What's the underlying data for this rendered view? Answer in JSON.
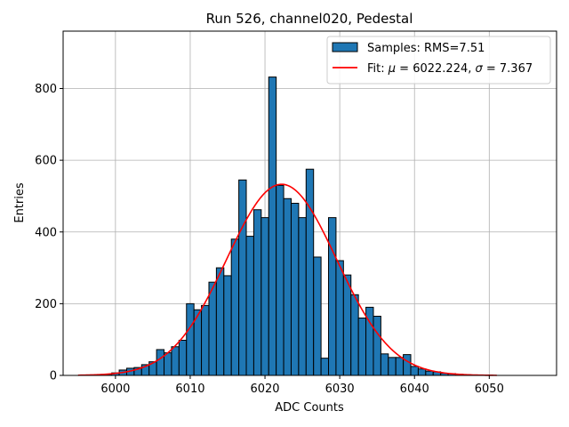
{
  "chart_data": {
    "type": "bar",
    "title": "Run 526, channel020, Pedestal",
    "xlabel": "ADC Counts",
    "ylabel": "Entries",
    "xlim": [
      5993,
      6059
    ],
    "ylim": [
      0,
      960
    ],
    "xticks": [
      6000,
      6010,
      6020,
      6030,
      6040,
      6050
    ],
    "yticks": [
      0,
      200,
      400,
      600,
      800
    ],
    "grid": true,
    "legend_position": "top-right",
    "histogram": {
      "name": "Samples: RMS=7.51",
      "color": "#1f77b4",
      "bins": [
        {
          "x": 5999,
          "count": 3
        },
        {
          "x": 6000,
          "count": 7
        },
        {
          "x": 6001,
          "count": 15
        },
        {
          "x": 6002,
          "count": 20
        },
        {
          "x": 6003,
          "count": 22
        },
        {
          "x": 6004,
          "count": 30
        },
        {
          "x": 6005,
          "count": 38
        },
        {
          "x": 6006,
          "count": 72
        },
        {
          "x": 6007,
          "count": 63
        },
        {
          "x": 6008,
          "count": 80
        },
        {
          "x": 6009,
          "count": 98
        },
        {
          "x": 6010,
          "count": 200
        },
        {
          "x": 6011,
          "count": 183
        },
        {
          "x": 6012,
          "count": 195
        },
        {
          "x": 6013,
          "count": 260
        },
        {
          "x": 6014,
          "count": 300
        },
        {
          "x": 6015,
          "count": 278
        },
        {
          "x": 6016,
          "count": 380
        },
        {
          "x": 6017,
          "count": 545
        },
        {
          "x": 6018,
          "count": 388
        },
        {
          "x": 6019,
          "count": 462
        },
        {
          "x": 6020,
          "count": 440
        },
        {
          "x": 6021,
          "count": 832
        },
        {
          "x": 6022,
          "count": 530
        },
        {
          "x": 6023,
          "count": 493
        },
        {
          "x": 6024,
          "count": 480
        },
        {
          "x": 6025,
          "count": 440
        },
        {
          "x": 6026,
          "count": 575
        },
        {
          "x": 6027,
          "count": 330
        },
        {
          "x": 6028,
          "count": 48
        },
        {
          "x": 6029,
          "count": 440
        },
        {
          "x": 6030,
          "count": 320
        },
        {
          "x": 6031,
          "count": 280
        },
        {
          "x": 6032,
          "count": 225
        },
        {
          "x": 6033,
          "count": 160
        },
        {
          "x": 6034,
          "count": 190
        },
        {
          "x": 6035,
          "count": 165
        },
        {
          "x": 6036,
          "count": 60
        },
        {
          "x": 6037,
          "count": 50
        },
        {
          "x": 6038,
          "count": 50
        },
        {
          "x": 6039,
          "count": 58
        },
        {
          "x": 6040,
          "count": 25
        },
        {
          "x": 6041,
          "count": 18
        },
        {
          "x": 6042,
          "count": 12
        },
        {
          "x": 6043,
          "count": 10
        },
        {
          "x": 6044,
          "count": 6
        },
        {
          "x": 6045,
          "count": 5
        },
        {
          "x": 6046,
          "count": 3
        },
        {
          "x": 6047,
          "count": 2
        },
        {
          "x": 6048,
          "count": 1
        }
      ],
      "bin_width": 1
    },
    "fit": {
      "name": "Fit: μ = 6022.224, σ = 7.367",
      "color": "#ff0000",
      "type": "gaussian",
      "mu": 6022.224,
      "sigma": 7.367,
      "amplitude": 533,
      "x_range": [
        5995,
        6051
      ]
    }
  },
  "legend": {
    "hist_label": "Samples: RMS=7.51",
    "fit_label_prefix": "Fit: ",
    "fit_mu_symbol": "μ",
    "fit_mu_value": " = 6022.224, ",
    "fit_sigma_symbol": "σ",
    "fit_sigma_value": " = 7.367"
  }
}
